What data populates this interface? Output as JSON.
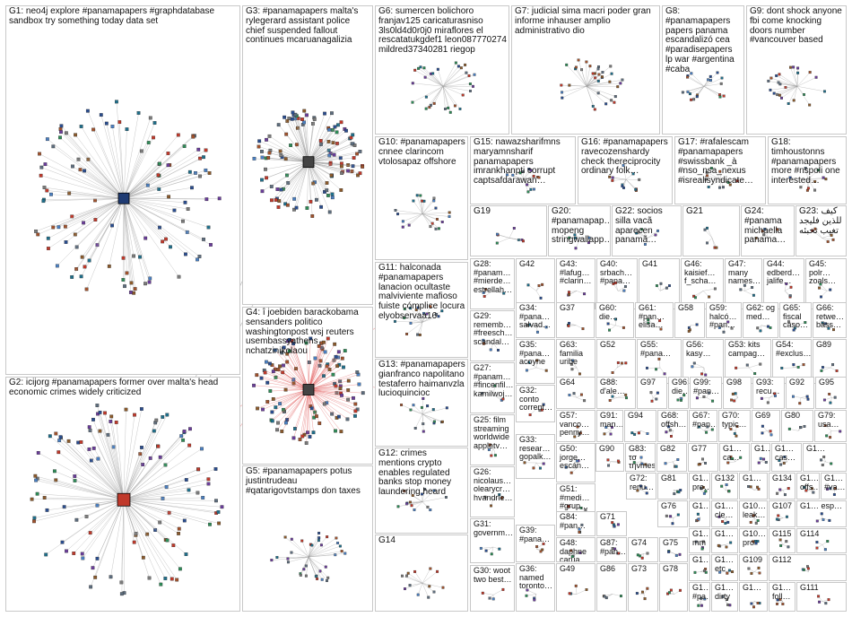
{
  "colors": {
    "edge": "#9a9a9a",
    "cross_edge": "#e88a8a",
    "border": "#c8c8c8",
    "node_palette": [
      "#2a4d8f",
      "#4a7fc1",
      "#6a3d9a",
      "#2e8b57",
      "#8b5a2b",
      "#7a7a7a",
      "#c0392b",
      "#1f6f8b",
      "#5d6d7e",
      "#a0522d"
    ],
    "hub_g1": "#1f3b73",
    "hub_g2": "#c0392b"
  },
  "groups": [
    {
      "id": "G1",
      "label": "G1: neo4j explore #panamapapers #graphdatabase sandbox try something today data set"
    },
    {
      "id": "G2",
      "label": "G2: icijorg #panamapapers former over malta's head economic crimes widely criticized"
    },
    {
      "id": "G3",
      "label": "G3: #panamapapers malta's rylegerard assistant police chief suspended fallout continues mcaruanagalizia"
    },
    {
      "id": "G4",
      "label": "G4: î joebiden barackobama sensanders politico washingtonpost wsj reuters usembassyathens nchatzinikolaou"
    },
    {
      "id": "G5",
      "label": "G5: #panamapapers potus justintrudeau #qatarigovtstamps don taxes"
    },
    {
      "id": "G6",
      "label": "G6: sumercen bolichoro franjav125 caricaturasniso 3ls0ld4d0r0j0 miraflores el rescatatukgdef1 leon087770274 mildred37340281 riegop"
    },
    {
      "id": "G7",
      "label": "G7: judicial sima macri poder gran informe inhauser amplio administrativo dio"
    },
    {
      "id": "G8",
      "label": "G8: #panamapapers papers panama escandalizó cea #paradisepapers lp war #argentina #caba"
    },
    {
      "id": "G9",
      "label": "G9: dont shock anyone fbi come knocking doors number #vancouver based"
    },
    {
      "id": "G10",
      "label": "G10: #panamapapers cnnee clarincom vtolosapaz offshore"
    },
    {
      "id": "G11",
      "label": "G11: halconada #panamapapers lanacion ocultaste malviviente mafioso fuiste cómplice locura elyobservaa16"
    },
    {
      "id": "G12",
      "label": "G12: crimes mentions crypto enables regulated banks stop money laundering heard"
    },
    {
      "id": "G13",
      "label": "G13: #panamapapers gianfranco napolitano testaferro haimanvzla lucioquincioc"
    },
    {
      "id": "G14",
      "label": "G14"
    },
    {
      "id": "G15",
      "label": "G15: nawazsharifmns maryamnsharif panamapapers imrankhanpti corrupt captsafdarawan…"
    },
    {
      "id": "G16",
      "label": "G16: #panamapapers ravecozenshardy check thereciprocity ordinary folk…"
    },
    {
      "id": "G17",
      "label": "G17: #rafalescam #panamapapers #swissbank _à #nso_nsa_nexus #isrealisyndicate…"
    },
    {
      "id": "G18",
      "label": "G18: timhoustonns #panamapapers more #nspoli one interested…"
    },
    {
      "id": "G19",
      "label": "G19"
    },
    {
      "id": "G20",
      "label": "G20: #panamapap… mopeng stringwallapp…"
    },
    {
      "id": "G22",
      "label": "G22: socios silla vacã aparecen panamã…"
    },
    {
      "id": "G21",
      "label": "G21"
    },
    {
      "id": "G24",
      "label": "G24: #panama michaella panama…"
    },
    {
      "id": "G23",
      "label": "G23: ﻛﻴﻒ ﻟﻠﺬﻳﻦ ﻓﻠﻴﺠﺪ ﺗﻐﻴﺐ ﺗﺨﺒﺌﻪ"
    },
    {
      "id": "G28",
      "label": "G28: #panam… #mierde… estrellah…"
    },
    {
      "id": "G42",
      "label": "G42"
    },
    {
      "id": "G43",
      "label": "G43: #lafug… #clarin…"
    },
    {
      "id": "G40",
      "label": "G40: srbach… #pana…"
    },
    {
      "id": "G41",
      "label": "G41"
    },
    {
      "id": "G46",
      "label": "G46: kaisief… f_scha…"
    },
    {
      "id": "G47",
      "label": "G47: many names…"
    },
    {
      "id": "G44",
      "label": "G44: edberd… jalife…"
    },
    {
      "id": "G45",
      "label": "G45: polr… zoals…"
    },
    {
      "id": "G29",
      "label": "G29: rememb… #freesch… scandal…"
    },
    {
      "id": "G34",
      "label": "G34: #pana… salvad…"
    },
    {
      "id": "G37",
      "label": "G37"
    },
    {
      "id": "G60",
      "label": "G60: die…"
    },
    {
      "id": "G61",
      "label": "G61: #pan… elisa…"
    },
    {
      "id": "G58",
      "label": "G58"
    },
    {
      "id": "G59",
      "label": "G59: halcó… #pan…"
    },
    {
      "id": "G62",
      "label": "G62: og med…"
    },
    {
      "id": "G65",
      "label": "G65: fiscal caso…"
    },
    {
      "id": "G66",
      "label": "G66: retwe… bäss…"
    },
    {
      "id": "G27",
      "label": "G27: #panam… #fincenfil… kamilwoj…"
    },
    {
      "id": "G35",
      "label": "G35: #pana… acoyne"
    },
    {
      "id": "G63",
      "label": "G63: familia uribe"
    },
    {
      "id": "G52",
      "label": "G52"
    },
    {
      "id": "G55",
      "label": "G55: #pana…"
    },
    {
      "id": "G56",
      "label": "G56: kasy…"
    },
    {
      "id": "G53",
      "label": "G53: kits campag…"
    },
    {
      "id": "G54",
      "label": "G54: #exclus…"
    },
    {
      "id": "G89",
      "label": "G89"
    },
    {
      "id": "G32",
      "label": "G32: conto corrent…"
    },
    {
      "id": "G64",
      "label": "G64"
    },
    {
      "id": "G88",
      "label": "G88: d'ale…"
    },
    {
      "id": "G97",
      "label": "G97"
    },
    {
      "id": "G96",
      "label": "G96: die…"
    },
    {
      "id": "G99",
      "label": "G99: #pan…"
    },
    {
      "id": "G98",
      "label": "G98"
    },
    {
      "id": "G93",
      "label": "G93: recu…"
    },
    {
      "id": "G92",
      "label": "G92"
    },
    {
      "id": "G95",
      "label": "G95"
    },
    {
      "id": "G25",
      "label": "G25: film streaming worldwide appletv…"
    },
    {
      "id": "G57",
      "label": "G57: vanco… penny…"
    },
    {
      "id": "G91",
      "label": "G91: man…"
    },
    {
      "id": "G94",
      "label": "G94"
    },
    {
      "id": "G68",
      "label": "G68: offsh…"
    },
    {
      "id": "G67",
      "label": "G67: #pan…"
    },
    {
      "id": "G70",
      "label": "G70: typic…"
    },
    {
      "id": "G69",
      "label": "G69"
    },
    {
      "id": "G80",
      "label": "G80"
    },
    {
      "id": "G79",
      "label": "G79: usa…"
    },
    {
      "id": "G33",
      "label": "G33: resear… gopalk…"
    },
    {
      "id": "G90",
      "label": "G90"
    },
    {
      "id": "G83",
      "label": "G83: τσ τηνmessi"
    },
    {
      "id": "G82",
      "label": "G82"
    },
    {
      "id": "G77",
      "label": "G77"
    },
    {
      "id": "G1a",
      "label": "G1… ca…"
    },
    {
      "id": "G1b",
      "label": "G1…"
    },
    {
      "id": "G1c",
      "label": "G1… cas…"
    },
    {
      "id": "G1d",
      "label": "G1…"
    },
    {
      "id": "G26",
      "label": "G26: nicolaus… olearycr… hvandrie…"
    },
    {
      "id": "G50",
      "label": "G50: jorge… escán…"
    },
    {
      "id": "G72",
      "label": "G72: renu…"
    },
    {
      "id": "G81",
      "label": "G81"
    },
    {
      "id": "G1e",
      "label": "G1… pro…"
    },
    {
      "id": "G132",
      "label": "G132"
    },
    {
      "id": "G1f",
      "label": "G1…"
    },
    {
      "id": "G134",
      "label": "G134"
    },
    {
      "id": "G1g",
      "label": "G1… offs…"
    },
    {
      "id": "G1h",
      "label": "G1… #va…"
    },
    {
      "id": "G51",
      "label": "G51: #medi… #grup…"
    },
    {
      "id": "G76",
      "label": "G76"
    },
    {
      "id": "G1i",
      "label": "G1…"
    },
    {
      "id": "G1j",
      "label": "G1… cle…"
    },
    {
      "id": "G10a",
      "label": "G10… leak…"
    },
    {
      "id": "G107",
      "label": "G107"
    },
    {
      "id": "G1k",
      "label": "G1… esp…"
    },
    {
      "id": "G31",
      "label": "G31: governm…"
    },
    {
      "id": "G39",
      "label": "G39: #pana…"
    },
    {
      "id": "G84",
      "label": "G84: #pan…"
    },
    {
      "id": "G71",
      "label": "G71"
    },
    {
      "id": "G48",
      "label": "G48: daphne carua…"
    },
    {
      "id": "G87",
      "label": "G87: #pan…"
    },
    {
      "id": "G74",
      "label": "G74"
    },
    {
      "id": "G75",
      "label": "G75"
    },
    {
      "id": "G1l",
      "label": "G1… mm"
    },
    {
      "id": "G1m",
      "label": "G1…"
    },
    {
      "id": "G10b",
      "label": "G10… pro"
    },
    {
      "id": "G115",
      "label": "G115"
    },
    {
      "id": "G114",
      "label": "G114"
    },
    {
      "id": "G30",
      "label": "G30: woot two best…"
    },
    {
      "id": "G36",
      "label": "G36: named toronto…"
    },
    {
      "id": "G49",
      "label": "G49"
    },
    {
      "id": "G86",
      "label": "G86"
    },
    {
      "id": "G73",
      "label": "G73"
    },
    {
      "id": "G78",
      "label": "G78"
    },
    {
      "id": "G1n",
      "label": "G1…"
    },
    {
      "id": "G1o",
      "label": "G1… etc"
    },
    {
      "id": "G109",
      "label": "G109"
    },
    {
      "id": "G112",
      "label": "G112"
    },
    {
      "id": "G1p",
      "label": "G1… #pa…"
    },
    {
      "id": "G1q",
      "label": "G1… dirty"
    },
    {
      "id": "G1r",
      "label": "G1…"
    },
    {
      "id": "G1s",
      "label": "G1… foll…"
    },
    {
      "id": "G111",
      "label": "G111"
    }
  ],
  "hubs": [
    {
      "group": "G1",
      "name": "neo4j"
    },
    {
      "group": "G2",
      "name": "icijorg"
    }
  ]
}
